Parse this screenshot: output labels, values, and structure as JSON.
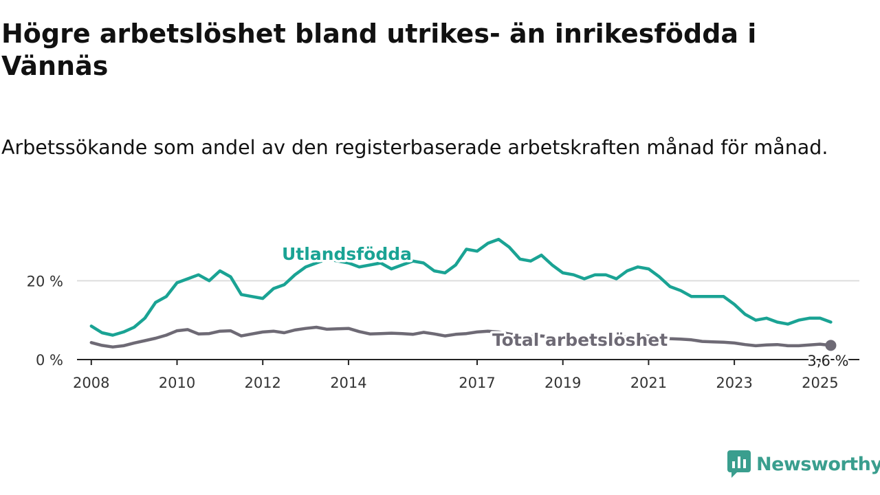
{
  "title": "Högre arbetslöshet bland utrikes- än inrikesfödda i Vännäs",
  "subtitle": "Arbetssökande som andel av den registerbaserade arbetskraften månad för månad.",
  "brand": {
    "name": "Newsworthy",
    "color": "#3a9e8e",
    "icon": "newsworthy-logo-icon"
  },
  "colors": {
    "utlandsfodda": "#1aa394",
    "total": "#6e6a75",
    "grid": "#dddddd",
    "axis": "#222222"
  },
  "chart_data": {
    "type": "line",
    "ylabel": "",
    "xlabel": "",
    "ylim": [
      0,
      30
    ],
    "xlim": [
      "2007-09",
      "2025-12"
    ],
    "grid": true,
    "y_ticks": [
      {
        "value": 0,
        "label": "0 %"
      },
      {
        "value": 20,
        "label": "20 %"
      }
    ],
    "x_ticks": [
      {
        "value": "2008-01",
        "label": "2008"
      },
      {
        "value": "2010-01",
        "label": "2010"
      },
      {
        "value": "2012-01",
        "label": "2012"
      },
      {
        "value": "2014-01",
        "label": "2014"
      },
      {
        "value": "2017-01",
        "label": "2017"
      },
      {
        "value": "2019-01",
        "label": "2019"
      },
      {
        "value": "2021-01",
        "label": "2021"
      },
      {
        "value": "2023-01",
        "label": "2023"
      },
      {
        "value": "2025-01",
        "label": "2025"
      }
    ],
    "series": [
      {
        "name": "Utlandsfödda",
        "key": "utlandsfodda",
        "x": [
          "2008-01",
          "2008-04",
          "2008-07",
          "2008-10",
          "2009-01",
          "2009-04",
          "2009-07",
          "2009-10",
          "2010-01",
          "2010-04",
          "2010-07",
          "2010-10",
          "2011-01",
          "2011-04",
          "2011-07",
          "2011-10",
          "2012-01",
          "2012-04",
          "2012-07",
          "2012-10",
          "2013-01",
          "2013-04",
          "2013-07",
          "2013-10",
          "2014-01",
          "2014-04",
          "2014-07",
          "2014-10",
          "2015-01",
          "2015-04",
          "2015-07",
          "2015-10",
          "2016-01",
          "2016-04",
          "2016-07",
          "2016-10",
          "2017-01",
          "2017-04",
          "2017-07",
          "2017-10",
          "2018-01",
          "2018-04",
          "2018-07",
          "2018-10",
          "2019-01",
          "2019-04",
          "2019-07",
          "2019-10",
          "2020-01",
          "2020-04",
          "2020-07",
          "2020-10",
          "2021-01",
          "2021-04",
          "2021-07",
          "2021-10",
          "2022-01",
          "2022-04",
          "2022-07",
          "2022-10",
          "2023-01",
          "2023-04",
          "2023-07",
          "2023-10",
          "2024-01",
          "2024-04",
          "2024-07",
          "2024-10",
          "2025-01",
          "2025-04"
        ],
        "values": [
          8.5,
          6.8,
          6.2,
          7.0,
          8.2,
          10.5,
          14.5,
          16.0,
          19.5,
          20.5,
          21.5,
          20.0,
          22.5,
          21.0,
          16.5,
          16.0,
          15.5,
          18.0,
          19.0,
          21.5,
          23.5,
          24.5,
          25.5,
          25.0,
          24.5,
          23.5,
          24.0,
          24.5,
          23.0,
          24.0,
          25.0,
          24.5,
          22.5,
          22.0,
          24.0,
          28.0,
          27.5,
          29.5,
          30.5,
          28.5,
          25.5,
          25.0,
          26.5,
          24.0,
          22.0,
          21.5,
          20.5,
          21.5,
          21.5,
          20.5,
          22.5,
          23.5,
          23.0,
          21.0,
          18.5,
          17.5,
          16.0,
          16.0,
          16.0,
          16.0,
          14.0,
          11.5,
          10.0,
          10.5,
          9.5,
          9.0,
          10.0,
          10.5,
          10.5,
          9.5
        ]
      },
      {
        "name": "Total arbetslöshet",
        "key": "total",
        "x": [
          "2008-01",
          "2008-04",
          "2008-07",
          "2008-10",
          "2009-01",
          "2009-04",
          "2009-07",
          "2009-10",
          "2010-01",
          "2010-04",
          "2010-07",
          "2010-10",
          "2011-01",
          "2011-04",
          "2011-07",
          "2011-10",
          "2012-01",
          "2012-04",
          "2012-07",
          "2012-10",
          "2013-01",
          "2013-04",
          "2013-07",
          "2013-10",
          "2014-01",
          "2014-04",
          "2014-07",
          "2014-10",
          "2015-01",
          "2015-04",
          "2015-07",
          "2015-10",
          "2016-01",
          "2016-04",
          "2016-07",
          "2016-10",
          "2017-01",
          "2017-04",
          "2017-07",
          "2017-10",
          "2018-01",
          "2018-04",
          "2018-07",
          "2018-10",
          "2019-01",
          "2019-04",
          "2019-07",
          "2019-10",
          "2020-01",
          "2020-04",
          "2020-07",
          "2020-10",
          "2021-01",
          "2021-04",
          "2021-07",
          "2021-10",
          "2022-01",
          "2022-04",
          "2022-07",
          "2022-10",
          "2023-01",
          "2023-04",
          "2023-07",
          "2023-10",
          "2024-01",
          "2024-04",
          "2024-07",
          "2024-10",
          "2025-01",
          "2025-04"
        ],
        "values": [
          4.3,
          3.6,
          3.2,
          3.5,
          4.2,
          4.8,
          5.4,
          6.2,
          7.3,
          7.6,
          6.5,
          6.6,
          7.2,
          7.3,
          6.0,
          6.5,
          7.0,
          7.2,
          6.8,
          7.5,
          7.9,
          8.2,
          7.7,
          7.8,
          7.9,
          7.1,
          6.5,
          6.6,
          6.7,
          6.6,
          6.4,
          6.9,
          6.5,
          6.0,
          6.4,
          6.6,
          7.0,
          7.2,
          7.0,
          6.5,
          6.0,
          5.9,
          6.0,
          5.7,
          5.4,
          5.3,
          5.4,
          5.5,
          5.6,
          5.5,
          5.8,
          6.0,
          6.0,
          5.5,
          5.3,
          5.2,
          5.0,
          4.6,
          4.5,
          4.4,
          4.2,
          3.8,
          3.5,
          3.7,
          3.8,
          3.5,
          3.5,
          3.7,
          3.9,
          3.6
        ]
      }
    ],
    "end_label": "3,6 %"
  }
}
